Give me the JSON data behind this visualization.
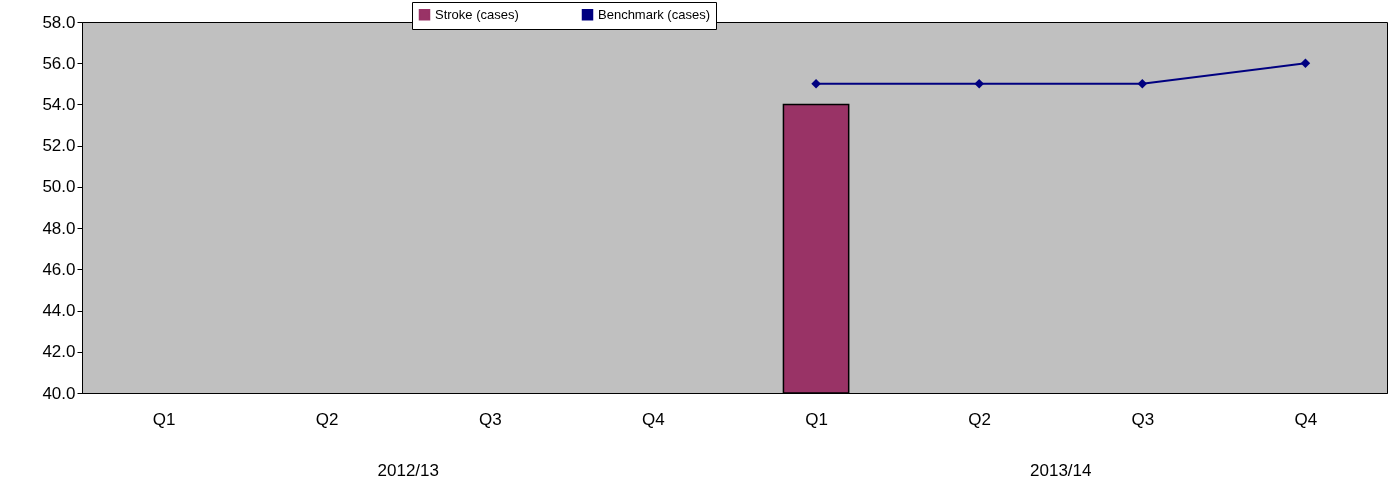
{
  "chart_data": {
    "type": "bar",
    "categories": [
      "Q1",
      "Q2",
      "Q3",
      "Q4",
      "Q1",
      "Q2",
      "Q3",
      "Q4"
    ],
    "series": [
      {
        "name": "Stroke (cases)",
        "color": "#993366",
        "values": [
          null,
          null,
          null,
          null,
          54,
          null,
          null,
          null
        ]
      },
      {
        "name": "Benchmark (cases)",
        "type": "line",
        "color": "#000080",
        "marker": "diamond",
        "values": [
          null,
          null,
          null,
          null,
          55,
          55,
          55,
          56
        ]
      }
    ],
    "annotations": [
      "2012/13",
      "2013/14"
    ],
    "ylim": [
      40,
      58
    ],
    "yticks": [
      {
        "value": 40,
        "label": "40.0"
      },
      {
        "value": 42,
        "label": "42.0"
      },
      {
        "value": 44,
        "label": "44.0"
      },
      {
        "value": 46,
        "label": "46.0"
      },
      {
        "value": 48,
        "label": "48.0"
      },
      {
        "value": 50,
        "label": "50.0"
      },
      {
        "value": 52,
        "label": "52.0"
      },
      {
        "value": 54,
        "label": "54.0"
      },
      {
        "value": 56,
        "label": "56.0"
      },
      {
        "value": 58,
        "label": "58.0"
      }
    ],
    "grid": false,
    "legend": "top"
  }
}
